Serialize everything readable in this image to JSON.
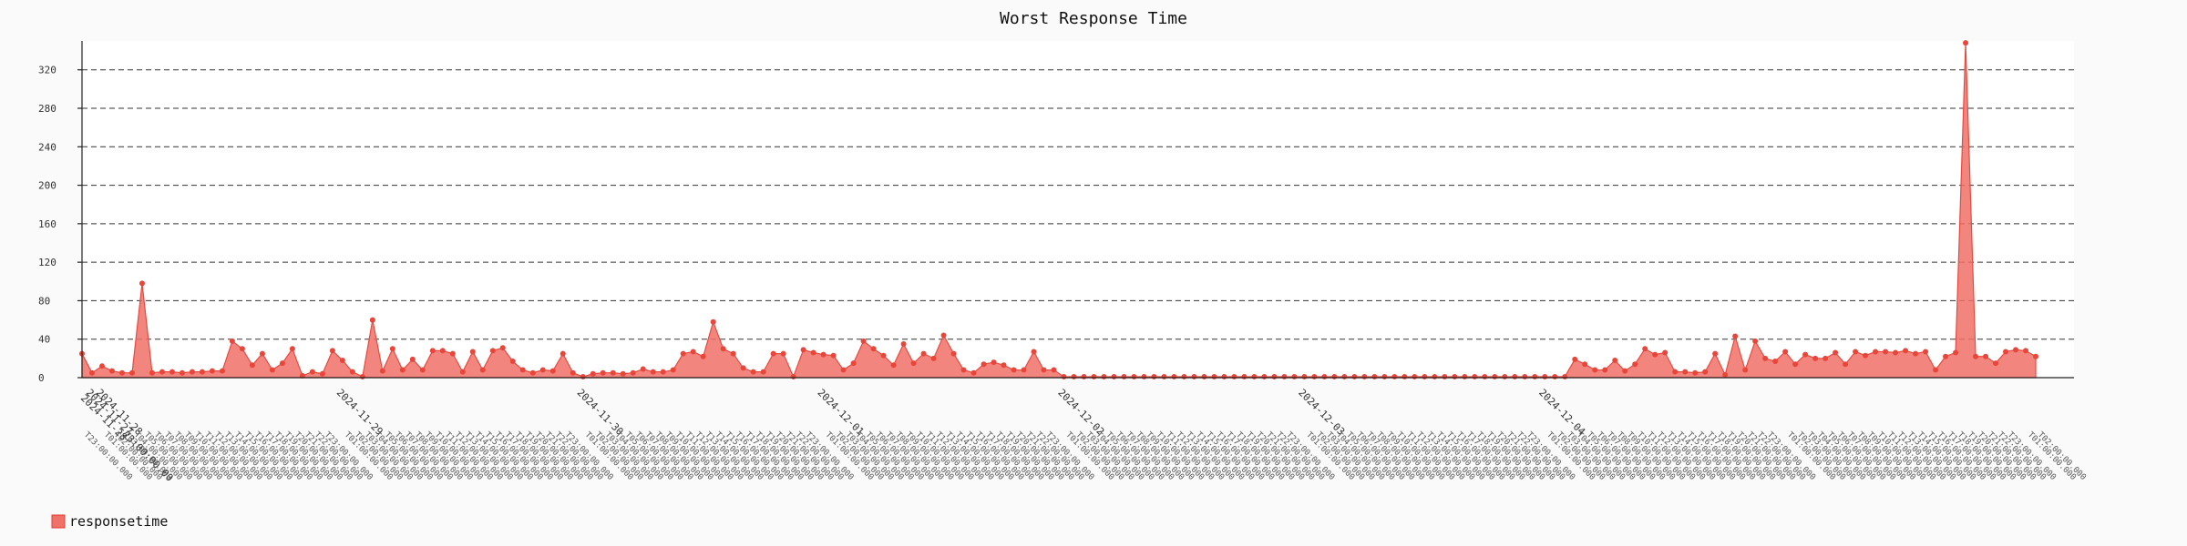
{
  "chart_data": {
    "type": "area",
    "title": "Worst Response Time",
    "xlabel": "",
    "ylabel": "",
    "ylim": [
      0,
      350
    ],
    "yticks": [
      0,
      40,
      80,
      120,
      160,
      200,
      240,
      280,
      320
    ],
    "grid": true,
    "legend_position": "bottom-left",
    "x_start": "2024-11-27 23:00:00",
    "x_interval": "1 hour",
    "date_labels": [
      "2024-11-28",
      "2024-11-29",
      "2024-11-30",
      "2024-12-01",
      "2024-12-02",
      "2024-12-03",
      "2024-12-04"
    ],
    "first_labels": [
      "2024-11-27",
      "2024-11-28",
      "23:00:00.00"
    ],
    "series": [
      {
        "name": "responsetime",
        "color": "#f07167",
        "values": [
          25,
          5,
          12,
          7,
          5,
          5,
          98,
          5,
          6,
          6,
          5,
          6,
          6,
          7,
          7,
          38,
          30,
          13,
          25,
          8,
          15,
          30,
          2,
          6,
          4,
          28,
          18,
          6,
          1,
          60,
          7,
          30,
          8,
          19,
          8,
          28,
          28,
          25,
          6,
          27,
          8,
          28,
          31,
          17,
          8,
          5,
          8,
          7,
          25,
          5,
          1,
          4,
          5,
          5,
          4,
          5,
          9,
          6,
          6,
          8,
          25,
          27,
          22,
          58,
          30,
          25,
          10,
          6,
          6,
          25,
          25,
          1,
          29,
          26,
          24,
          23,
          8,
          15,
          38,
          30,
          23,
          13,
          35,
          15,
          25,
          20,
          44,
          25,
          8,
          5,
          14,
          16,
          13,
          8,
          8,
          27,
          8,
          8,
          1,
          1,
          1,
          1,
          1,
          1,
          1,
          1,
          1,
          1,
          1,
          1,
          1,
          1,
          1,
          1,
          1,
          1,
          1,
          1,
          1,
          1,
          1,
          1,
          1,
          1,
          1,
          1,
          1,
          1,
          1,
          1,
          1,
          1,
          1,
          1,
          1,
          1,
          1,
          1,
          1,
          1,
          1,
          1,
          1,
          1,
          1,
          1,
          1,
          1,
          1,
          19,
          14,
          8,
          8,
          18,
          7,
          14,
          30,
          24,
          26,
          6,
          6,
          5,
          6,
          25,
          3,
          43,
          8,
          38,
          20,
          17,
          27,
          14,
          24,
          20,
          20,
          26,
          14,
          27,
          23,
          27,
          27,
          26,
          28,
          25,
          27,
          8,
          22,
          26,
          348,
          22,
          22,
          15,
          27,
          29,
          28,
          22
        ]
      }
    ]
  }
}
